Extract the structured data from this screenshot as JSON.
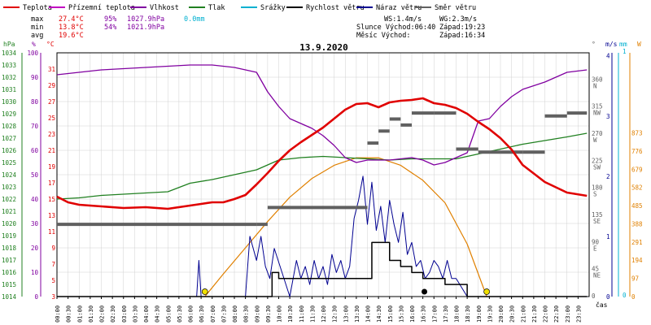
{
  "colors": {
    "teplota": "#e00000",
    "prizemni": "#c000c0",
    "vlhkost": "#8000a0",
    "tlak": "#208020",
    "srazky": "#00b0d0",
    "rychlost": "#000000",
    "naraz": "#000090",
    "smer": "#606060",
    "slunce": "#e08000",
    "sun_marker": "#f0e000",
    "grid": "#d0d0d0"
  },
  "legend": [
    {
      "label": "Teplota",
      "color_key": "teplota"
    },
    {
      "label": "Přízemní teplota",
      "color_key": "prizemni"
    },
    {
      "label": "Vlhkost",
      "color_key": "vlhkost"
    },
    {
      "label": "Tlak",
      "color_key": "tlak"
    },
    {
      "label": "Srážky",
      "color_key": "srazky"
    },
    {
      "label": "Rychlost větru",
      "color_key": "rychlost"
    },
    {
      "label": "Náraz větru",
      "color_key": "naraz"
    },
    {
      "label": "Směr větru",
      "color_key": "smer"
    }
  ],
  "stats": {
    "max_label": "max",
    "min_label": "min",
    "avg_label": "avg",
    "max_temp": "27.4°C",
    "min_temp": "13.8°C",
    "avg_temp": "19.6°C",
    "max_hum": "95%",
    "min_hum": "54%",
    "max_press": "1027.9hPa",
    "min_press": "1021.9hPa",
    "rain": "0.0mm"
  },
  "info": {
    "ws": "WS:1.4m/s",
    "wg": "WG:2.3m/s",
    "slunce": "Slunce Východ:06:40",
    "slunce_zapad": "Západ:19:23",
    "mesic": "Měsíc  Východ:",
    "mesic_zapad": "Západ:16:34"
  },
  "chart_data": {
    "type": "line",
    "title": "13.9.2020",
    "xlabel": "čas",
    "x_ticks": [
      "00:00",
      "00:30",
      "01:00",
      "01:30",
      "02:00",
      "02:30",
      "03:00",
      "03:30",
      "04:00",
      "04:30",
      "05:00",
      "05:30",
      "06:00",
      "06:30",
      "07:00",
      "07:30",
      "08:00",
      "08:30",
      "09:00",
      "09:30",
      "10:00",
      "10:30",
      "11:00",
      "11:30",
      "12:00",
      "12:30",
      "13:00",
      "13:30",
      "14:00",
      "14:30",
      "15:00",
      "15:30",
      "16:00",
      "16:30",
      "17:00",
      "17:30",
      "18:00",
      "18:30",
      "19:00",
      "19:30",
      "20:00",
      "20:30",
      "21:00",
      "21:30",
      "22:00",
      "22:30",
      "23:00",
      "23:30"
    ],
    "axes": {
      "hpa": {
        "label": "hPa",
        "ticks": [
          "1014",
          "1015",
          "1016",
          "1017",
          "1018",
          "1019",
          "1020",
          "1021",
          "1022",
          "1023",
          "1024",
          "1025",
          "1026",
          "1027",
          "1028",
          "1029",
          "1030",
          "1031",
          "1032",
          "1033",
          "1034"
        ],
        "ylim": [
          1014,
          1034
        ]
      },
      "percent": {
        "label": "%",
        "ticks": [
          "0",
          "10",
          "20",
          "30",
          "40",
          "50",
          "60",
          "70",
          "80",
          "90",
          "100"
        ],
        "ylim": [
          0,
          100
        ]
      },
      "celsius": {
        "label": "°C",
        "ticks": [
          "3",
          "5",
          "7",
          "9",
          "11",
          "13",
          "15",
          "17",
          "19",
          "21",
          "23",
          "25",
          "27",
          "29",
          "31"
        ],
        "ylim": [
          3,
          33
        ]
      },
      "degrees": {
        "label": "°",
        "ticks": [
          {
            "v": "360",
            "d": "N"
          },
          {
            "v": "315",
            "d": "NW"
          },
          {
            "v": "270",
            "d": "W"
          },
          {
            "v": "225",
            "d": "SW"
          },
          {
            "v": "180",
            "d": "S"
          },
          {
            "v": "135",
            "d": "SE"
          },
          {
            "v": "90",
            "d": "E"
          },
          {
            "v": "45",
            "d": "NE"
          },
          {
            "v": "0",
            "d": ""
          }
        ],
        "ylim": [
          0,
          405
        ]
      },
      "ms": {
        "label": "m/s",
        "ticks": [
          "0",
          "1",
          "2",
          "3",
          "4"
        ],
        "ylim": [
          0,
          4.05
        ]
      },
      "mm": {
        "label": "mm",
        "ticks": [
          "1",
          "0"
        ]
      },
      "wm2": {
        "label": "W",
        "ticks": [
          "0",
          "97",
          "194",
          "291",
          "388",
          "485",
          "582",
          "679",
          "776",
          "873"
        ],
        "ylim": [
          0,
          1300
        ]
      }
    },
    "series": [
      {
        "name": "Teplota",
        "unit": "°C",
        "x": [
          0,
          0.5,
          1,
          2,
          3,
          4,
          5,
          6,
          6.5,
          7,
          7.5,
          8,
          8.5,
          9,
          9.5,
          10,
          10.5,
          11,
          11.5,
          12,
          12.5,
          13,
          13.5,
          14,
          14.5,
          15,
          15.5,
          16,
          16.5,
          17,
          17.5,
          18,
          18.5,
          19,
          19.5,
          20,
          20.5,
          21,
          22,
          23,
          23.9
        ],
        "y": [
          15.3,
          14.6,
          14.3,
          14.1,
          13.9,
          14.0,
          13.8,
          14.2,
          14.4,
          14.6,
          14.6,
          15.0,
          15.5,
          16.8,
          18.2,
          19.7,
          21.0,
          22.0,
          22.9,
          23.8,
          24.9,
          26.0,
          26.7,
          26.8,
          26.3,
          26.9,
          27.1,
          27.2,
          27.4,
          26.8,
          26.6,
          26.2,
          25.5,
          24.5,
          23.6,
          22.5,
          21.1,
          19.2,
          17.1,
          15.8,
          15.4
        ]
      },
      {
        "name": "Vlhkost",
        "unit": "%",
        "x": [
          0,
          1,
          2,
          4,
          6,
          7,
          8,
          9,
          9.5,
          10,
          10.5,
          11,
          11.5,
          12,
          12.5,
          13,
          13.5,
          14,
          15,
          16,
          16.5,
          17,
          17.5,
          18,
          18.5,
          19,
          19.5,
          20,
          20.5,
          21,
          22,
          23,
          23.9
        ],
        "y": [
          91,
          92,
          93,
          94,
          95,
          95,
          94,
          92,
          84,
          78,
          73,
          71,
          69,
          66,
          62,
          57,
          55,
          56,
          56,
          57,
          56,
          54,
          55,
          57,
          59,
          72,
          73,
          78,
          82,
          85,
          88,
          92,
          93
        ]
      },
      {
        "name": "Tlak",
        "unit": "hPa",
        "x": [
          0,
          1,
          2,
          3,
          4,
          5,
          6,
          7,
          8,
          9,
          10,
          11,
          12,
          13,
          14,
          15,
          16,
          17,
          18,
          19,
          20,
          21,
          22,
          23,
          23.9
        ],
        "y": [
          1022.0,
          1022.1,
          1022.3,
          1022.4,
          1022.5,
          1022.6,
          1023.3,
          1023.6,
          1024.0,
          1024.4,
          1025.2,
          1025.4,
          1025.5,
          1025.4,
          1025.3,
          1025.2,
          1025.3,
          1025.3,
          1025.3,
          1025.7,
          1026.1,
          1026.5,
          1026.8,
          1027.1,
          1027.4
        ]
      },
      {
        "name": "Rychlost větru",
        "unit": "m/s",
        "x": [
          0,
          9,
          9.7,
          10,
          10.5,
          11,
          11.5,
          12,
          12.5,
          13,
          13.5,
          14,
          14.2,
          14.5,
          15,
          15.5,
          16,
          16.5,
          17,
          17.5,
          18,
          18.5,
          23.9
        ],
        "y": [
          0,
          0,
          0.4,
          0.3,
          0.3,
          0.3,
          0.3,
          0.3,
          0.3,
          0.3,
          0.3,
          0.3,
          0.9,
          0.9,
          0.6,
          0.5,
          0.4,
          0.3,
          0.3,
          0.2,
          0.2,
          0,
          0
        ]
      },
      {
        "name": "Náraz větru",
        "unit": "m/s",
        "x": [
          0,
          6.3,
          6.4,
          6.5,
          8.5,
          8.7,
          9,
          9.2,
          9.4,
          9.6,
          9.8,
          10.5,
          10.8,
          11,
          11.2,
          11.4,
          11.6,
          11.8,
          12,
          12.2,
          12.4,
          12.6,
          12.8,
          13,
          13.2,
          13.4,
          13.6,
          13.8,
          14,
          14.2,
          14.4,
          14.6,
          14.8,
          15,
          15.2,
          15.4,
          15.6,
          15.8,
          16,
          16.2,
          16.4,
          16.6,
          16.8,
          17,
          17.2,
          17.4,
          17.6,
          17.8,
          18,
          18.5,
          23.9
        ],
        "y": [
          0,
          0,
          0.6,
          0,
          0,
          1.0,
          0.6,
          1.0,
          0.5,
          0.3,
          0.8,
          0,
          0.6,
          0.3,
          0.5,
          0.2,
          0.6,
          0.3,
          0.5,
          0.2,
          0.7,
          0.4,
          0.6,
          0.3,
          0.5,
          1.3,
          1.6,
          2.0,
          1.2,
          1.9,
          1.1,
          1.5,
          0.9,
          1.6,
          1.2,
          0.9,
          1.4,
          0.7,
          0.9,
          0.5,
          0.6,
          0.3,
          0.4,
          0.6,
          0.5,
          0.3,
          0.6,
          0.3,
          0.3,
          0,
          0
        ]
      },
      {
        "name": "Směr větru",
        "unit": "°",
        "x": [
          0,
          9,
          9.5,
          13.5,
          14,
          14.5,
          15,
          15.5,
          16,
          17,
          18,
          19,
          20,
          21,
          22,
          23,
          23.9
        ],
        "y": [
          120,
          120,
          148,
          148,
          255,
          275,
          295,
          285,
          305,
          305,
          245,
          240,
          240,
          240,
          300,
          305,
          305
        ]
      },
      {
        "name": "Slunce",
        "unit": "W",
        "x": [
          6.67,
          7.5,
          8.5,
          9.5,
          10.5,
          11.5,
          12.5,
          13.5,
          14.5,
          15.5,
          16.5,
          17.5,
          18.5,
          19.38
        ],
        "y": [
          0,
          120,
          260,
          400,
          530,
          630,
          700,
          740,
          740,
          700,
          620,
          500,
          280,
          0
        ]
      }
    ],
    "sun_markers": [
      6.67,
      19.38
    ],
    "moon_marker": 16.57
  }
}
